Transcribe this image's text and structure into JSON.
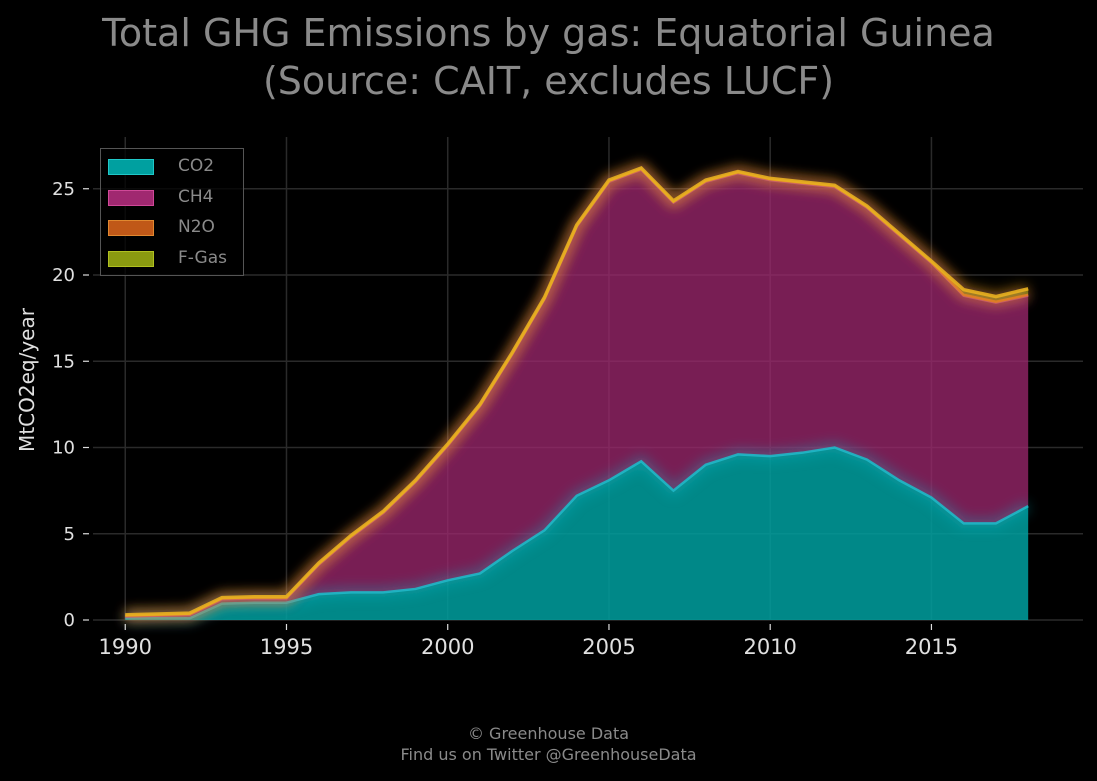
{
  "title": {
    "line1": "Total GHG Emissions by gas: Equatorial Guinea",
    "line2": "(Source: CAIT, excludes LUCF)"
  },
  "footer": {
    "line1": "© Greenhouse Data",
    "line2": "Find us on Twitter @GreenhouseData"
  },
  "colors": {
    "background": "#000000",
    "grid": "#2a2a2a",
    "co2": "#00a0a0",
    "ch4": "#a02870",
    "n2o": "#c05818",
    "fgas": "#8a9a10",
    "glow": "#e8b020",
    "co2_line": "#20b8c8"
  },
  "chart_data": {
    "type": "area",
    "stacked": true,
    "x": [
      1990,
      1991,
      1992,
      1993,
      1994,
      1995,
      1996,
      1997,
      1998,
      1999,
      2000,
      2001,
      2002,
      2003,
      2004,
      2005,
      2006,
      2007,
      2008,
      2009,
      2010,
      2011,
      2012,
      2013,
      2014,
      2015,
      2016,
      2017,
      2018
    ],
    "series": [
      {
        "name": "CO2",
        "values": [
          0.1,
          0.1,
          0.1,
          0.95,
          1.0,
          1.0,
          1.5,
          1.6,
          1.6,
          1.8,
          2.3,
          2.7,
          4.0,
          5.2,
          7.2,
          8.1,
          9.2,
          7.5,
          9.0,
          9.6,
          9.5,
          9.7,
          10.0,
          9.3,
          8.1,
          7.1,
          5.6,
          5.6,
          6.6
        ]
      },
      {
        "name": "CH4",
        "values": [
          0.1,
          0.15,
          0.2,
          0.25,
          0.25,
          0.25,
          1.7,
          3.2,
          4.6,
          6.2,
          7.8,
          9.7,
          11.4,
          13.4,
          15.6,
          17.3,
          16.9,
          16.7,
          16.4,
          16.3,
          16.0,
          15.6,
          15.1,
          14.6,
          14.2,
          13.6,
          13.2,
          12.8,
          12.2
        ]
      },
      {
        "name": "N2O",
        "values": [
          0.05,
          0.05,
          0.05,
          0.05,
          0.05,
          0.05,
          0.05,
          0.05,
          0.05,
          0.05,
          0.05,
          0.05,
          0.05,
          0.05,
          0.05,
          0.05,
          0.05,
          0.05,
          0.05,
          0.05,
          0.05,
          0.05,
          0.05,
          0.05,
          0.05,
          0.05,
          0.05,
          0.05,
          0.05
        ]
      },
      {
        "name": "F-Gas",
        "values": [
          0.05,
          0.05,
          0.05,
          0.05,
          0.05,
          0.05,
          0.05,
          0.05,
          0.05,
          0.05,
          0.05,
          0.05,
          0.05,
          0.05,
          0.05,
          0.05,
          0.05,
          0.05,
          0.05,
          0.05,
          0.05,
          0.05,
          0.05,
          0.05,
          0.05,
          0.05,
          0.3,
          0.3,
          0.35
        ]
      }
    ],
    "xticks": [
      1990,
      1995,
      2000,
      2005,
      2010,
      2015
    ],
    "yticks": [
      0,
      5,
      10,
      15,
      20,
      25
    ],
    "xlim": [
      1989,
      2019.7
    ],
    "ylim": [
      0,
      28
    ],
    "ylabel": "MtCO2eq/year",
    "xlabel": "",
    "grid": true,
    "legend_position": "top-left"
  }
}
